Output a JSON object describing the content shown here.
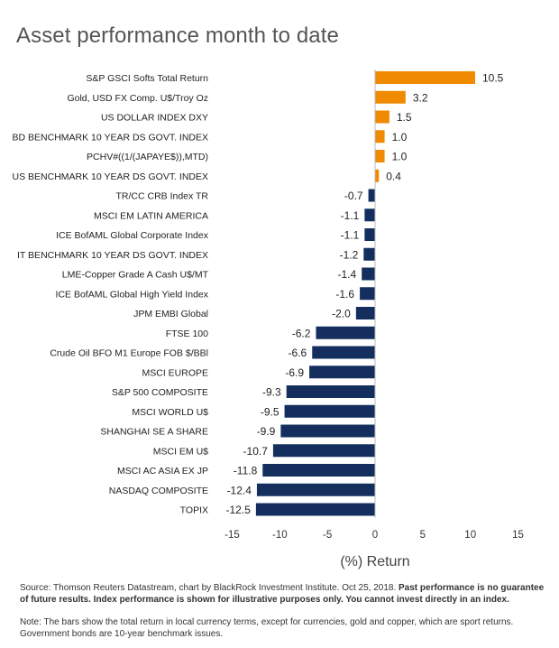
{
  "title": "Asset performance month to date",
  "chart_data": {
    "type": "bar",
    "orientation": "horizontal",
    "title": "Asset performance month to date",
    "xlabel": "(%) Return",
    "ylabel": "",
    "xlim": [
      -15,
      15
    ],
    "xticks": [
      -15,
      -10,
      -5,
      0,
      5,
      10,
      15
    ],
    "grid": false,
    "colors": {
      "positive": "#f08a00",
      "negative": "#142f5e"
    },
    "categories": [
      "S&P GSCI Softs Total Return",
      "Gold, USD FX Comp. U$/Troy Oz",
      "US DOLLAR INDEX DXY",
      "BD BENCHMARK 10 YEAR DS GOVT. INDEX",
      "PCHV#((1/(JAPAYE$)),MTD)",
      "US BENCHMARK 10 YEAR DS GOVT. INDEX",
      "TR/CC CRB Index TR",
      "MSCI EM LATIN AMERICA",
      "ICE BofAML Global Corporate Index",
      "IT BENCHMARK 10 YEAR DS GOVT. INDEX",
      "LME-Copper Grade A Cash U$/MT",
      "ICE BofAML Global High Yield Index",
      "JPM EMBI Global",
      "FTSE 100",
      "Crude Oil BFO M1 Europe FOB $/BBl",
      "MSCI EUROPE",
      "S&P 500 COMPOSITE",
      "MSCI WORLD U$",
      "SHANGHAI SE A SHARE",
      "MSCI EM U$",
      "MSCI AC ASIA EX JP",
      "NASDAQ COMPOSITE",
      "TOPIX"
    ],
    "values": [
      10.5,
      3.2,
      1.5,
      1.0,
      1.0,
      0.4,
      -0.7,
      -1.1,
      -1.1,
      -1.2,
      -1.4,
      -1.6,
      -2.0,
      -6.2,
      -6.6,
      -6.9,
      -9.3,
      -9.5,
      -9.9,
      -10.7,
      -11.8,
      -12.4,
      -12.5
    ],
    "value_labels": [
      "10.5",
      "3.2",
      "1.5",
      "1.0",
      "1.0",
      "0.4",
      "-0.7",
      "-1.1",
      "-1.1",
      "-1.2",
      "-1.4",
      "-1.6",
      "-2.0",
      "-6.2",
      "-6.6",
      "-6.9",
      "-9.3",
      "-9.5",
      "-9.9",
      "-10.7",
      "-11.8",
      "-12.4",
      "-12.5"
    ]
  },
  "footer": {
    "source_plain": "Source: Thomson Reuters Datastream, chart by BlackRock Investment Institute. Oct 25, 2018. ",
    "source_bold": "Past performance is no guarantee of future results. Index performance is shown for illustrative purposes only.  You cannot invest directly in an index.",
    "note": "Note: The bars show the total return in local currency terms, except for currencies, gold and copper, which are sport returns. Government bonds are 10-year benchmark issues."
  }
}
